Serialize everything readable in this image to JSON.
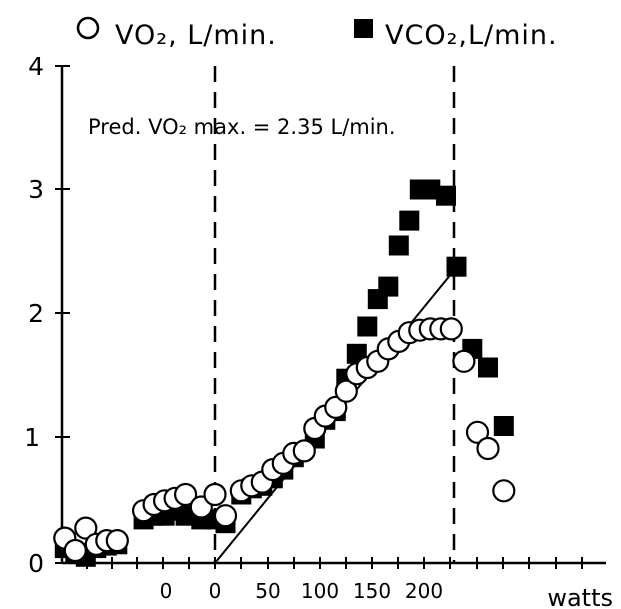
{
  "chart_data": {
    "type": "scatter",
    "legend": {
      "placement": "top",
      "items": [
        {
          "marker": "open-circle",
          "label": "VO₂, L/min."
        },
        {
          "marker": "filled-square",
          "label": "VCO₂,L/min."
        }
      ]
    },
    "annotation": "Pred. VO₂ max. = 2.35 L/min.",
    "xlabel": "watts",
    "ylim": [
      0,
      4
    ],
    "y_ticks": [
      "0",
      "1",
      "2",
      "3",
      "4"
    ],
    "x_ticks": [
      "0",
      "0",
      "50",
      "100",
      "150",
      "200"
    ],
    "vertical_dashed_lines": [
      "start of exercise (0 W)",
      "end of exercise (~225 W)"
    ],
    "predicted_line": {
      "from_watts": 0,
      "to_watts": 225,
      "from_vo2": 0,
      "to_vo2": 2.35
    },
    "series": [
      {
        "name": "VO₂, L/min.",
        "marker": "open-circle",
        "points": [
          [
            -143,
            0.2
          ],
          [
            -133,
            0.1
          ],
          [
            -123,
            0.28
          ],
          [
            -113,
            0.15
          ],
          [
            -103,
            0.18
          ],
          [
            -93,
            0.18
          ],
          [
            -68,
            0.42
          ],
          [
            -58,
            0.47
          ],
          [
            -48,
            0.5
          ],
          [
            -38,
            0.52
          ],
          [
            -28,
            0.55
          ],
          [
            -13,
            0.45
          ],
          [
            0,
            0.55
          ],
          [
            10,
            0.38
          ],
          [
            25,
            0.58
          ],
          [
            35,
            0.62
          ],
          [
            45,
            0.65
          ],
          [
            55,
            0.75
          ],
          [
            65,
            0.8
          ],
          [
            75,
            0.88
          ],
          [
            85,
            0.9
          ],
          [
            95,
            1.08
          ],
          [
            105,
            1.18
          ],
          [
            115,
            1.25
          ],
          [
            125,
            1.38
          ],
          [
            135,
            1.52
          ],
          [
            145,
            1.57
          ],
          [
            155,
            1.62
          ],
          [
            165,
            1.72
          ],
          [
            175,
            1.78
          ],
          [
            185,
            1.85
          ],
          [
            195,
            1.87
          ],
          [
            205,
            1.88
          ],
          [
            215,
            1.88
          ],
          [
            225,
            1.88
          ],
          [
            237,
            1.62
          ],
          [
            250,
            1.05
          ],
          [
            260,
            0.92
          ],
          [
            275,
            0.58
          ]
        ]
      },
      {
        "name": "VCO₂,L/min.",
        "marker": "filled-square",
        "points": [
          [
            -143,
            0.12
          ],
          [
            -133,
            0.08
          ],
          [
            -123,
            0.05
          ],
          [
            -113,
            0.12
          ],
          [
            -103,
            0.14
          ],
          [
            -93,
            0.15
          ],
          [
            -68,
            0.35
          ],
          [
            -58,
            0.38
          ],
          [
            -48,
            0.38
          ],
          [
            -38,
            0.42
          ],
          [
            -28,
            0.38
          ],
          [
            -13,
            0.35
          ],
          [
            0,
            0.35
          ],
          [
            10,
            0.32
          ],
          [
            25,
            0.55
          ],
          [
            35,
            0.6
          ],
          [
            45,
            0.62
          ],
          [
            55,
            0.68
          ],
          [
            65,
            0.75
          ],
          [
            75,
            0.85
          ],
          [
            95,
            1.0
          ],
          [
            105,
            1.15
          ],
          [
            115,
            1.22
          ],
          [
            125,
            1.48
          ],
          [
            135,
            1.68
          ],
          [
            145,
            1.9
          ],
          [
            155,
            2.12
          ],
          [
            165,
            2.22
          ],
          [
            175,
            2.55
          ],
          [
            185,
            2.75
          ],
          [
            195,
            3.0
          ],
          [
            205,
            3.0
          ],
          [
            220,
            2.95
          ],
          [
            230,
            2.38
          ],
          [
            245,
            1.72
          ],
          [
            260,
            1.57
          ],
          [
            275,
            1.1
          ]
        ]
      }
    ]
  }
}
